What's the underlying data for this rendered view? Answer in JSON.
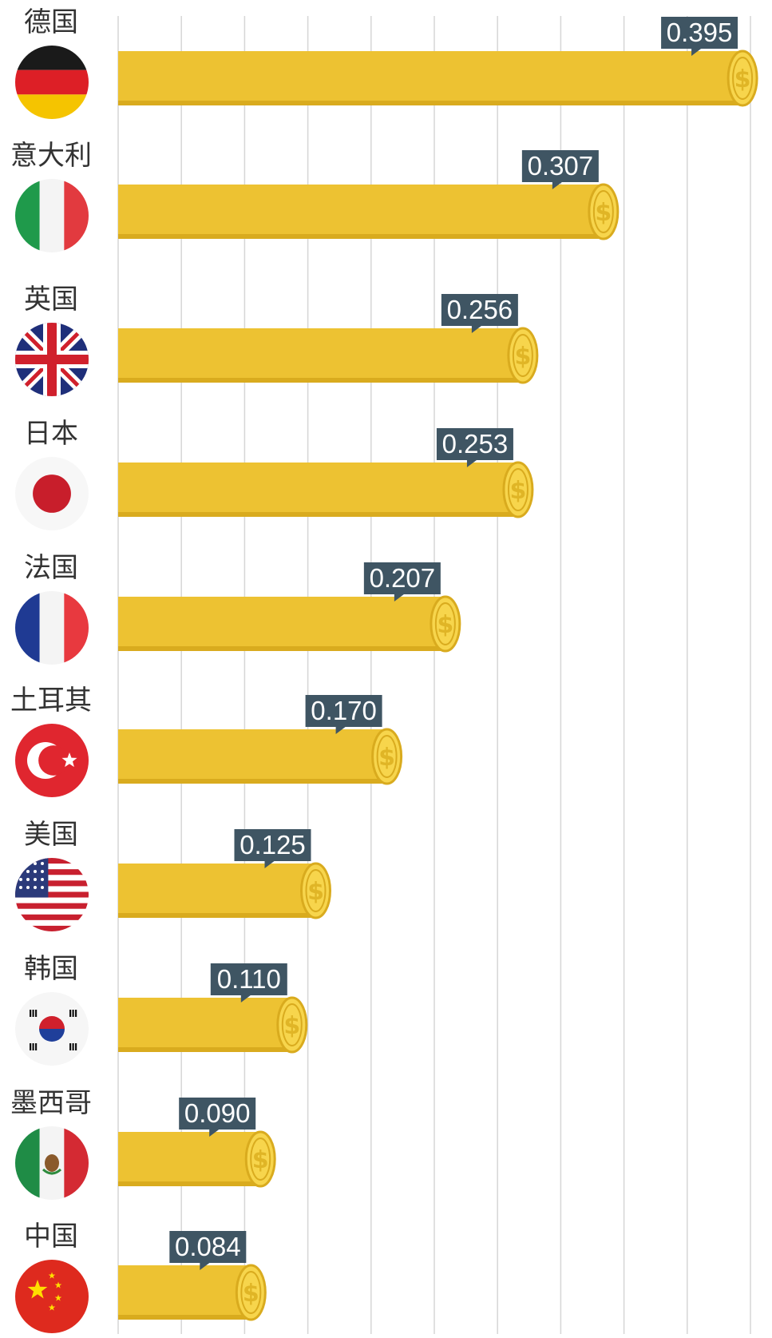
{
  "chart_data": {
    "type": "bar",
    "orientation": "horizontal",
    "categories": [
      "德国",
      "意大利",
      "英国",
      "日本",
      "法国",
      "土耳其",
      "美国",
      "韩国",
      "墨西哥",
      "中国"
    ],
    "values": [
      0.395,
      0.307,
      0.256,
      0.253,
      0.207,
      0.17,
      0.125,
      0.11,
      0.09,
      0.084
    ],
    "value_labels": [
      "0.395",
      "0.307",
      "0.256",
      "0.253",
      "0.207",
      "0.170",
      "0.125",
      "0.110",
      "0.090",
      "0.084"
    ],
    "flag_icons": [
      "germany-flag-icon",
      "italy-flag-icon",
      "uk-flag-icon",
      "japan-flag-icon",
      "france-flag-icon",
      "turkey-flag-icon",
      "usa-flag-icon",
      "south-korea-flag-icon",
      "mexico-flag-icon",
      "china-flag-icon"
    ],
    "coin_symbol": "$",
    "xlim": [
      0,
      0.4
    ],
    "grid": true,
    "colors": {
      "bar": "#edc232",
      "bar_shadow": "#d9ab1e",
      "coin": "#f7d54c",
      "label_box": "#3f5563",
      "grid": "#d6d6d6"
    }
  }
}
